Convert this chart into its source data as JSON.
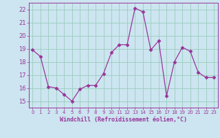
{
  "x": [
    0,
    1,
    2,
    3,
    4,
    5,
    6,
    7,
    8,
    9,
    10,
    11,
    12,
    13,
    14,
    15,
    16,
    17,
    18,
    19,
    20,
    21,
    22,
    23
  ],
  "y": [
    18.9,
    18.4,
    16.1,
    16.0,
    15.5,
    15.0,
    15.9,
    16.2,
    16.2,
    17.1,
    18.7,
    19.3,
    19.3,
    22.1,
    21.8,
    18.9,
    19.6,
    15.4,
    18.0,
    19.1,
    18.8,
    17.2,
    16.8,
    16.8
  ],
  "line_color": "#993399",
  "marker": "D",
  "marker_size": 2.5,
  "bg_color": "#cce5f0",
  "grid_color": "#99ccbb",
  "xlabel": "Windchill (Refroidissement éolien,°C)",
  "xlabel_color": "#993399",
  "tick_color": "#993399",
  "ylim": [
    14.5,
    22.5
  ],
  "xlim": [
    -0.5,
    23.5
  ],
  "yticks": [
    15,
    16,
    17,
    18,
    19,
    20,
    21,
    22
  ],
  "xticks": [
    0,
    1,
    2,
    3,
    4,
    5,
    6,
    7,
    8,
    9,
    10,
    11,
    12,
    13,
    14,
    15,
    16,
    17,
    18,
    19,
    20,
    21,
    22,
    23
  ]
}
